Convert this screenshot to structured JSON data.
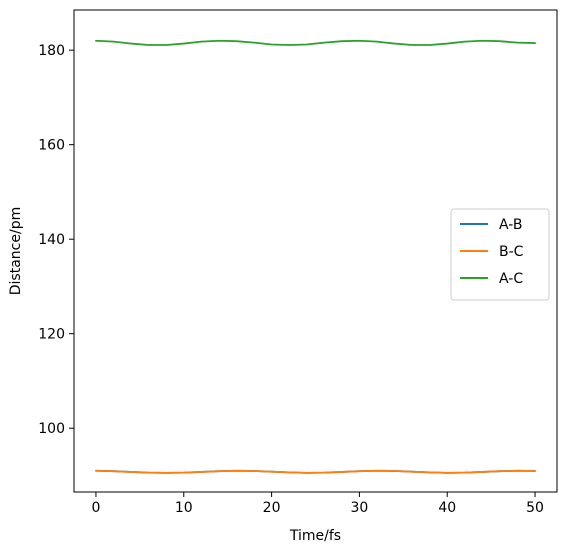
{
  "chart_data": {
    "type": "line",
    "title": "",
    "xlabel": "Time/fs",
    "ylabel": "Distance/pm",
    "xlim": [
      -2.5,
      52.5
    ],
    "ylim": [
      86.5,
      188.5
    ],
    "xticks": [
      0,
      10,
      20,
      30,
      40,
      50
    ],
    "yticks": [
      100,
      120,
      140,
      160,
      180
    ],
    "grid": false,
    "legend_position": "center-right",
    "series": [
      {
        "name": "A-B",
        "color": "#1f77b4",
        "x": [
          0,
          2,
          4,
          6,
          8,
          10,
          12,
          14,
          16,
          18,
          20,
          22,
          24,
          26,
          28,
          30,
          32,
          34,
          36,
          38,
          40,
          42,
          44,
          46,
          48,
          50
        ],
        "y": [
          91.0,
          90.9,
          90.75,
          90.6,
          90.55,
          90.6,
          90.75,
          90.9,
          91.0,
          90.95,
          90.8,
          90.65,
          90.55,
          90.6,
          90.75,
          90.9,
          91.0,
          90.95,
          90.8,
          90.65,
          90.55,
          90.6,
          90.75,
          90.9,
          91.0,
          90.95
        ]
      },
      {
        "name": "B-C",
        "color": "#ff7f0e",
        "x": [
          0,
          2,
          4,
          6,
          8,
          10,
          12,
          14,
          16,
          18,
          20,
          22,
          24,
          26,
          28,
          30,
          32,
          34,
          36,
          38,
          40,
          42,
          44,
          46,
          48,
          50
        ],
        "y": [
          91.0,
          90.9,
          90.75,
          90.6,
          90.55,
          90.6,
          90.75,
          90.9,
          91.0,
          90.95,
          90.8,
          90.65,
          90.55,
          90.6,
          90.75,
          90.9,
          91.0,
          90.95,
          90.8,
          90.65,
          90.55,
          90.6,
          90.75,
          90.9,
          91.0,
          90.95
        ]
      },
      {
        "name": "A-C",
        "color": "#2ca02c",
        "x": [
          0,
          2,
          4,
          6,
          8,
          10,
          12,
          14,
          16,
          18,
          20,
          22,
          24,
          26,
          28,
          30,
          32,
          34,
          36,
          38,
          40,
          42,
          44,
          46,
          48,
          50
        ],
        "y": [
          182.0,
          181.8,
          181.4,
          181.1,
          181.1,
          181.4,
          181.8,
          182.0,
          181.9,
          181.6,
          181.2,
          181.1,
          181.2,
          181.6,
          181.9,
          182.0,
          181.8,
          181.4,
          181.1,
          181.1,
          181.4,
          181.8,
          182.0,
          181.9,
          181.6,
          181.5
        ]
      }
    ]
  }
}
